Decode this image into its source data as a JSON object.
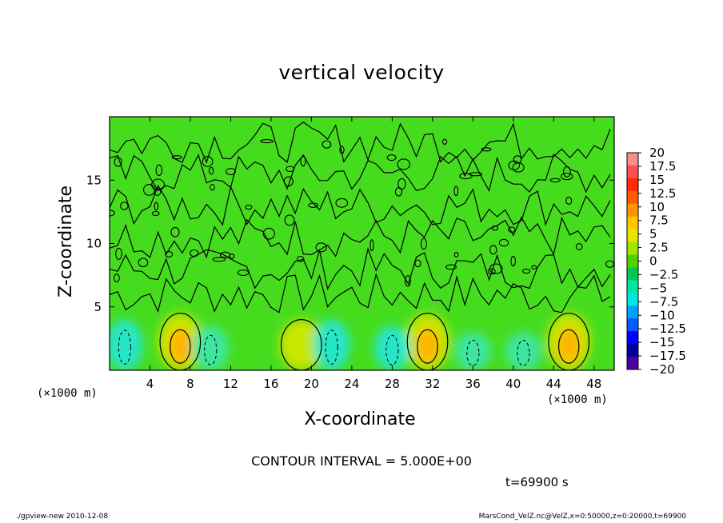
{
  "chart_data": {
    "type": "heatmap",
    "title": "vertical velocity",
    "xlabel": "X-coordinate",
    "ylabel": "Z-coordinate",
    "x_unit": "(×1000 m)",
    "xlim": [
      0,
      50
    ],
    "ylim": [
      0,
      20
    ],
    "x_ticks": [
      "4",
      "8",
      "12",
      "16",
      "20",
      "24",
      "28",
      "32",
      "36",
      "40",
      "44",
      "48"
    ],
    "x_tick_values": [
      4,
      8,
      12,
      16,
      20,
      24,
      28,
      32,
      36,
      40,
      44,
      48
    ],
    "y_ticks": [
      "5",
      "10",
      "15"
    ],
    "y_tick_values": [
      5,
      10,
      15
    ],
    "colorbar": {
      "labels": [
        "20",
        "17.5",
        "15",
        "12.5",
        "10",
        "7.5",
        "5",
        "2.5",
        "0",
        "-2.5",
        "-5",
        "-7.5",
        "-10",
        "-12.5",
        "-15",
        "-17.5",
        "-20"
      ],
      "colors": [
        "#ff8c8c",
        "#ff5050",
        "#ff2a00",
        "#ff5a00",
        "#ff9600",
        "#ffc800",
        "#e6e600",
        "#a0e600",
        "#50d200",
        "#00c850",
        "#00e6a0",
        "#00e6e6",
        "#00a0ff",
        "#005aff",
        "#0000ff",
        "#0000a0",
        "#5000a0"
      ]
    },
    "features": {
      "updrafts": [
        {
          "x": 7,
          "z_top": 4.5,
          "peak": 8
        },
        {
          "x": 19,
          "z_top": 4,
          "peak": 3
        },
        {
          "x": 31.5,
          "z_top": 4.5,
          "peak": 9
        },
        {
          "x": 45.5,
          "z_top": 4.5,
          "peak": 8
        }
      ],
      "downdrafts": [
        {
          "x": 1.5,
          "z_top": 4,
          "peak": -7
        },
        {
          "x": 10,
          "z_top": 3.5,
          "peak": -5
        },
        {
          "x": 22,
          "z_top": 4,
          "peak": -7
        },
        {
          "x": 28,
          "z_top": 3.5,
          "peak": -6
        },
        {
          "x": 36,
          "z_top": 3,
          "peak": -4
        },
        {
          "x": 41,
          "z_top": 3,
          "peak": -4
        }
      ]
    },
    "contour_interval": "CONTOUR INTERVAL = 5.000E+00",
    "time": "t=69900 s"
  },
  "footer": {
    "left": "./gpview-new   2010-12-08",
    "right": "MarsCond_VelZ.nc@VelZ,x=0:50000,z=0:20000,t=69900"
  }
}
